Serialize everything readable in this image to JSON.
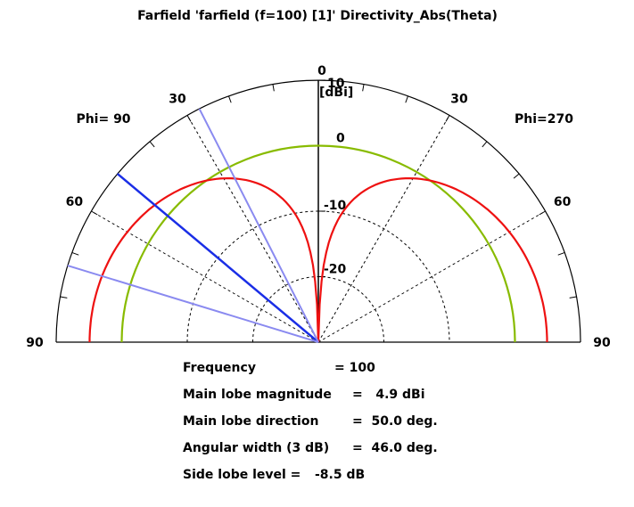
{
  "chart_data": {
    "type": "polar",
    "title": "Farfield 'farfield (f=100) [1]' Directivity_Abs(Theta)",
    "unit_label": "[dBi]",
    "r_range": [
      -30,
      10
    ],
    "r_ticks": [
      {
        "value": 10,
        "label": "10"
      },
      {
        "value": 0,
        "label": "0"
      },
      {
        "value": -10,
        "label": "-10"
      },
      {
        "value": -20,
        "label": "-20"
      }
    ],
    "angle_ticks": [
      {
        "value": 0,
        "side": "top",
        "label": "0"
      },
      {
        "value": 30,
        "side": "left",
        "label": "30"
      },
      {
        "value": 30,
        "side": "right",
        "label": "30"
      },
      {
        "value": 60,
        "side": "left",
        "label": "60"
      },
      {
        "value": 60,
        "side": "right",
        "label": "60"
      },
      {
        "value": 90,
        "side": "left",
        "label": "90"
      },
      {
        "value": 90,
        "side": "right",
        "label": "90"
      }
    ],
    "phi_labels": {
      "left": "Phi= 90",
      "right": "Phi=270"
    },
    "series": [
      {
        "color": "#ee1111",
        "type": "dipole",
        "peak_dBi": 4.9,
        "theta_deg": [
          0,
          5,
          10,
          20,
          30,
          40,
          50,
          60,
          70,
          80,
          90
        ]
      },
      {
        "color": "#88bb00",
        "type": "isotropic",
        "level_dBi": 0
      }
    ],
    "markers": [
      {
        "name": "main-lobe-direction",
        "theta_deg": 50,
        "color": "#1a2ee6"
      },
      {
        "name": "beamwidth-edge-1",
        "theta_deg": 27,
        "color": "#8a8af0"
      },
      {
        "name": "beamwidth-edge-2",
        "theta_deg": 73,
        "color": "#8a8af0"
      }
    ]
  },
  "info": {
    "frequency": {
      "label": "Frequency",
      "value": "= 100"
    },
    "main_lobe_magnitude": {
      "label": "Main lobe magnitude",
      "value": "=   4.9 dBi"
    },
    "main_lobe_direction": {
      "label": "Main lobe direction",
      "value": "=  50.0 deg."
    },
    "angular_width": {
      "label": "Angular width (3 dB)",
      "value": "=  46.0 deg."
    },
    "side_lobe_level": {
      "label": "Side lobe level =",
      "value": "-8.5 dB"
    }
  }
}
